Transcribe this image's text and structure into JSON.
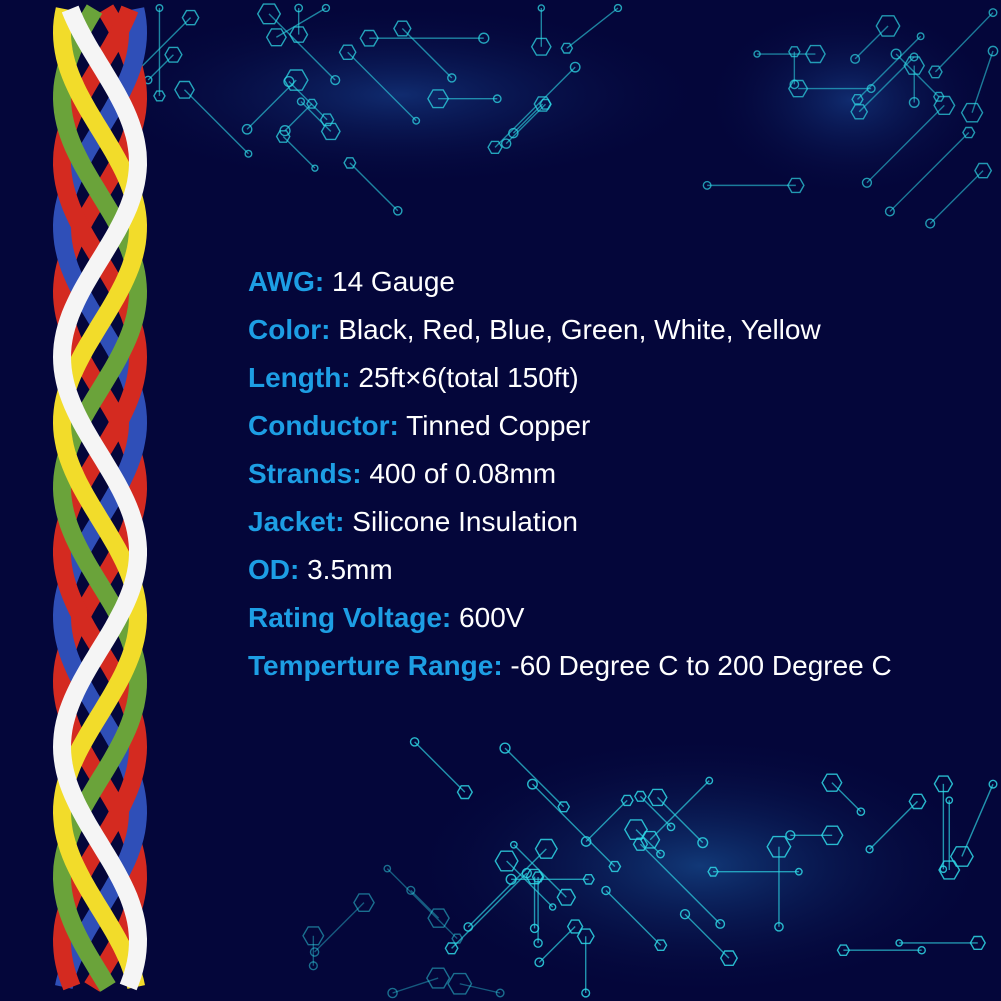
{
  "colors": {
    "background": "#04063a",
    "label": "#1d9ee4",
    "value": "#ffffff",
    "circuit": "#2fd8e6"
  },
  "wire_colors": [
    "#d42a20",
    "#2f4fb8",
    "#6aa33a",
    "#f2dc2a",
    "#f5f5f5",
    "#d42a20"
  ],
  "specs": [
    {
      "label": "AWG:",
      "value": "14 Gauge"
    },
    {
      "label": "Color:",
      "value": "Black, Red, Blue, Green, White, Yellow"
    },
    {
      "label": "Length:",
      "value": "25ft×6(total 150ft)"
    },
    {
      "label": "Conductor:",
      "value": "Tinned Copper"
    },
    {
      "label": "Strands:",
      "value": "400 of 0.08mm"
    },
    {
      "label": "Jacket:",
      "value": "Silicone Insulation"
    },
    {
      "label": "OD:",
      "value": "3.5mm"
    },
    {
      "label": "Rating Voltage:",
      "value": "600V"
    },
    {
      "label": "Temperture Range:",
      "value": "-60 Degree C to 200 Degree C"
    }
  ]
}
